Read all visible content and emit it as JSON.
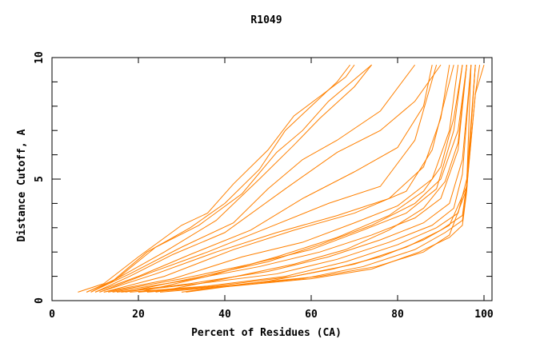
{
  "chart_data": {
    "type": "line",
    "title": "R1049",
    "xlabel": "Percent of Residues (CA)",
    "ylabel": "Distance Cutoff, A",
    "xlim": [
      0,
      102
    ],
    "ylim": [
      0,
      10
    ],
    "x_ticks": [
      "0",
      "20",
      "40",
      "60",
      "80",
      "100"
    ],
    "y_ticks": [
      "0",
      "5",
      "10"
    ],
    "grid": false,
    "legend": "none",
    "line_color": "#ff8000",
    "series": [
      {
        "points": [
          [
            6,
            0.35
          ],
          [
            12,
            0.7
          ],
          [
            20,
            1.8
          ],
          [
            30,
            3.1
          ],
          [
            36,
            3.6
          ],
          [
            42,
            4.8
          ],
          [
            50,
            6.2
          ],
          [
            56,
            7.6
          ],
          [
            62,
            8.4
          ],
          [
            68,
            9.2
          ],
          [
            70,
            9.7
          ]
        ]
      },
      {
        "points": [
          [
            8,
            0.35
          ],
          [
            14,
            0.8
          ],
          [
            22,
            2.0
          ],
          [
            32,
            3.0
          ],
          [
            40,
            4.0
          ],
          [
            48,
            5.4
          ],
          [
            54,
            7.0
          ],
          [
            60,
            8.0
          ],
          [
            66,
            9.0
          ],
          [
            69,
            9.7
          ]
        ]
      },
      {
        "points": [
          [
            8,
            0.35
          ],
          [
            15,
            0.9
          ],
          [
            24,
            2.2
          ],
          [
            34,
            3.1
          ],
          [
            44,
            4.4
          ],
          [
            52,
            6.1
          ],
          [
            58,
            7.0
          ],
          [
            64,
            8.2
          ],
          [
            74,
            9.7
          ]
        ]
      },
      {
        "points": [
          [
            9,
            0.35
          ],
          [
            16,
            1.0
          ],
          [
            26,
            2.0
          ],
          [
            38,
            3.3
          ],
          [
            48,
            5.0
          ],
          [
            56,
            6.4
          ],
          [
            62,
            7.5
          ],
          [
            70,
            8.8
          ],
          [
            74,
            9.7
          ]
        ]
      },
      {
        "points": [
          [
            9,
            0.35
          ],
          [
            18,
            1.1
          ],
          [
            30,
            2.2
          ],
          [
            42,
            3.2
          ],
          [
            50,
            4.6
          ],
          [
            58,
            5.8
          ],
          [
            66,
            6.6
          ],
          [
            76,
            7.8
          ],
          [
            84,
            9.7
          ]
        ]
      },
      {
        "points": [
          [
            10,
            0.35
          ],
          [
            18,
            1.0
          ],
          [
            28,
            1.9
          ],
          [
            40,
            2.8
          ],
          [
            54,
            4.6
          ],
          [
            66,
            6.1
          ],
          [
            76,
            7.0
          ],
          [
            84,
            8.2
          ],
          [
            90,
            9.7
          ]
        ]
      },
      {
        "points": [
          [
            10,
            0.35
          ],
          [
            20,
            1.0
          ],
          [
            32,
            1.9
          ],
          [
            46,
            2.9
          ],
          [
            58,
            4.2
          ],
          [
            70,
            5.3
          ],
          [
            80,
            6.3
          ],
          [
            86,
            8.0
          ],
          [
            88,
            9.7
          ]
        ]
      },
      {
        "points": [
          [
            11,
            0.35
          ],
          [
            22,
            1.1
          ],
          [
            36,
            2.0
          ],
          [
            50,
            3.0
          ],
          [
            64,
            4.0
          ],
          [
            76,
            4.7
          ],
          [
            84,
            6.6
          ],
          [
            89,
            9.7
          ]
        ]
      },
      {
        "points": [
          [
            11,
            0.35
          ],
          [
            24,
            1.1
          ],
          [
            38,
            2.0
          ],
          [
            52,
            2.8
          ],
          [
            66,
            3.5
          ],
          [
            78,
            4.2
          ],
          [
            86,
            5.5
          ],
          [
            90,
            7.5
          ],
          [
            92,
            9.7
          ]
        ]
      },
      {
        "points": [
          [
            12,
            0.35
          ],
          [
            26,
            1.0
          ],
          [
            42,
            2.1
          ],
          [
            56,
            2.9
          ],
          [
            70,
            3.6
          ],
          [
            82,
            4.5
          ],
          [
            88,
            6.2
          ],
          [
            93,
            9.7
          ]
        ]
      },
      {
        "points": [
          [
            12,
            0.35
          ],
          [
            28,
            0.9
          ],
          [
            44,
            1.8
          ],
          [
            58,
            2.4
          ],
          [
            70,
            3.2
          ],
          [
            80,
            3.9
          ],
          [
            88,
            5.0
          ],
          [
            92,
            7.0
          ],
          [
            94,
            9.7
          ]
        ]
      },
      {
        "points": [
          [
            13,
            0.35
          ],
          [
            30,
            0.9
          ],
          [
            46,
            1.5
          ],
          [
            60,
            2.1
          ],
          [
            72,
            2.9
          ],
          [
            82,
            3.6
          ],
          [
            89,
            4.6
          ],
          [
            93,
            7.0
          ],
          [
            95,
            9.7
          ]
        ]
      },
      {
        "points": [
          [
            14,
            0.35
          ],
          [
            30,
            0.8
          ],
          [
            48,
            1.4
          ],
          [
            62,
            2.0
          ],
          [
            74,
            2.7
          ],
          [
            84,
            3.4
          ],
          [
            90,
            4.2
          ],
          [
            94,
            6.2
          ],
          [
            96,
            9.7
          ]
        ]
      },
      {
        "points": [
          [
            15,
            0.35
          ],
          [
            32,
            0.7
          ],
          [
            50,
            1.2
          ],
          [
            64,
            1.8
          ],
          [
            76,
            2.5
          ],
          [
            86,
            3.2
          ],
          [
            92,
            4.0
          ],
          [
            95,
            5.8
          ],
          [
            97,
            9.7
          ]
        ]
      },
      {
        "points": [
          [
            16,
            0.35
          ],
          [
            34,
            0.7
          ],
          [
            52,
            1.1
          ],
          [
            66,
            1.7
          ],
          [
            78,
            2.4
          ],
          [
            88,
            3.1
          ],
          [
            93,
            3.8
          ],
          [
            95,
            5.2
          ],
          [
            97,
            9.7
          ]
        ]
      },
      {
        "points": [
          [
            18,
            0.35
          ],
          [
            36,
            0.6
          ],
          [
            54,
            1.0
          ],
          [
            68,
            1.6
          ],
          [
            80,
            2.3
          ],
          [
            89,
            3.0
          ],
          [
            94,
            3.6
          ],
          [
            96,
            5.0
          ],
          [
            98,
            9.7
          ]
        ]
      },
      {
        "points": [
          [
            20,
            0.35
          ],
          [
            38,
            0.6
          ],
          [
            56,
            1.0
          ],
          [
            70,
            1.5
          ],
          [
            82,
            2.2
          ],
          [
            90,
            2.9
          ],
          [
            95,
            3.5
          ],
          [
            96,
            4.8
          ],
          [
            97,
            9.7
          ]
        ]
      },
      {
        "points": [
          [
            22,
            0.35
          ],
          [
            40,
            0.6
          ],
          [
            58,
            0.9
          ],
          [
            72,
            1.4
          ],
          [
            84,
            2.1
          ],
          [
            91,
            2.8
          ],
          [
            95,
            3.3
          ],
          [
            96,
            4.6
          ],
          [
            98,
            9.7
          ]
        ]
      },
      {
        "points": [
          [
            25,
            0.35
          ],
          [
            42,
            0.6
          ],
          [
            60,
            0.9
          ],
          [
            74,
            1.3
          ],
          [
            85,
            2.0
          ],
          [
            92,
            2.6
          ],
          [
            95,
            3.1
          ],
          [
            96,
            4.5
          ],
          [
            98,
            9.7
          ]
        ]
      },
      {
        "points": [
          [
            30,
            0.35
          ],
          [
            45,
            0.7
          ],
          [
            62,
            1.0
          ],
          [
            75,
            1.4
          ],
          [
            86,
            2.0
          ],
          [
            92,
            2.7
          ],
          [
            96,
            4.6
          ],
          [
            98,
            8.5
          ],
          [
            99,
            9.7
          ]
        ]
      },
      {
        "points": [
          [
            31,
            0.35
          ],
          [
            50,
            0.8
          ],
          [
            65,
            1.3
          ],
          [
            76,
            1.8
          ],
          [
            86,
            2.5
          ],
          [
            92,
            3.1
          ],
          [
            96,
            4.7
          ],
          [
            98,
            8.5
          ],
          [
            100,
            9.7
          ]
        ]
      },
      {
        "points": [
          [
            24,
            0.35
          ],
          [
            40,
            0.9
          ],
          [
            56,
            1.5
          ],
          [
            68,
            2.1
          ],
          [
            78,
            2.9
          ],
          [
            86,
            3.8
          ],
          [
            91,
            4.9
          ],
          [
            94,
            6.5
          ],
          [
            96,
            9.7
          ]
        ]
      },
      {
        "points": [
          [
            20,
            0.35
          ],
          [
            36,
            1.0
          ],
          [
            52,
            1.8
          ],
          [
            66,
            2.6
          ],
          [
            78,
            3.5
          ],
          [
            86,
            4.5
          ],
          [
            90,
            5.5
          ],
          [
            93,
            7.5
          ],
          [
            95,
            9.7
          ]
        ]
      },
      {
        "points": [
          [
            17,
            0.35
          ],
          [
            32,
            0.9
          ],
          [
            50,
            1.6
          ],
          [
            62,
            2.3
          ],
          [
            74,
            3.1
          ],
          [
            84,
            4.0
          ],
          [
            90,
            5.0
          ],
          [
            94,
            7.0
          ],
          [
            96,
            9.7
          ]
        ]
      }
    ]
  }
}
